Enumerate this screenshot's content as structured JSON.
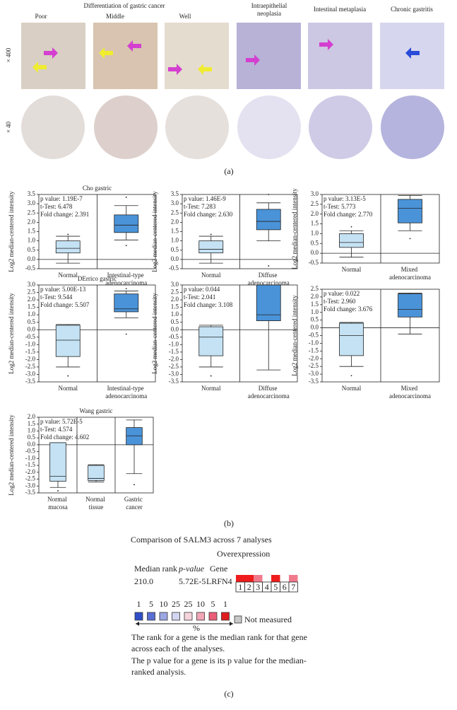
{
  "panel_a": {
    "group_title": "Differentiation of gastric cancer",
    "columns": [
      "Poor",
      "Middle",
      "Well",
      "Intraepithelial neoplasia",
      "Intestinal metaplasia",
      "Chronic gastritis"
    ],
    "rows": [
      "× 400",
      "× 40"
    ],
    "label": "(a)"
  },
  "panel_b_label": "(b)",
  "chart_data": [
    {
      "type": "box",
      "title": "Cho gastric",
      "ylabel": "Log2 median-centered intensity",
      "stats": [
        "p value: 1.19E-7",
        "t-Test: 6.478",
        "Fold change: 2.391"
      ],
      "categories": [
        "Normal",
        "Intestinal-type adenocarcinoma"
      ],
      "colors": [
        "#c4e2f4",
        "#4a93d8"
      ],
      "boxes": [
        {
          "whislo": -0.2,
          "q1": 0.35,
          "med": 0.6,
          "q3": 1.0,
          "whishi": 1.25,
          "fliers": [
            1.35
          ]
        },
        {
          "whislo": 1.05,
          "q1": 1.45,
          "med": 1.85,
          "q3": 2.4,
          "whishi": 2.9,
          "fliers": [
            3.35,
            0.75
          ]
        }
      ],
      "ylim": [
        -0.5,
        3.5
      ],
      "yticks": [
        -0.5,
        {
          "value": 0,
          "label": "0.0"
        },
        0.5,
        {
          "value": 1,
          "label": "1.0"
        },
        1.5,
        {
          "value": 2,
          "label": "2.0"
        },
        2.5,
        {
          "value": 3,
          "label": "3.0"
        },
        3.5
      ]
    },
    {
      "type": "box",
      "ylabel": "Log2 median-centered intensity",
      "stats": [
        "p value: 1.46E-9",
        "t-Test: 7.283",
        "Fold change: 2.630"
      ],
      "categories": [
        "Normal",
        "Diffuse adenocarcinoma"
      ],
      "colors": [
        "#c4e2f4",
        "#4a93d8"
      ],
      "boxes": [
        {
          "whislo": -0.2,
          "q1": 0.35,
          "med": 0.55,
          "q3": 1.0,
          "whishi": 1.25,
          "fliers": [
            1.35
          ]
        },
        {
          "whislo": 1.0,
          "q1": 1.6,
          "med": 2.05,
          "q3": 2.7,
          "whishi": 3.05,
          "fliers": [
            3.5,
            -0.35
          ]
        }
      ],
      "ylim": [
        -0.5,
        3.5
      ],
      "yticks": [
        -0.5,
        {
          "value": 0,
          "label": "0.0"
        },
        0.5,
        {
          "value": 1,
          "label": "1.0"
        },
        1.5,
        {
          "value": 2,
          "label": "2.0"
        },
        2.5,
        {
          "value": 3,
          "label": "3.0"
        },
        3.5
      ]
    },
    {
      "type": "box",
      "ylabel": "Log2 median-centered intensity",
      "stats": [
        "p value: 3.13E-5",
        "t-Test: 5.773",
        "Fold change: 2.770"
      ],
      "categories": [
        "Normal",
        "Mixed adenocarcinoma"
      ],
      "colors": [
        "#c4e2f4",
        "#4a93d8"
      ],
      "boxes": [
        {
          "whislo": -0.2,
          "q1": 0.3,
          "med": 0.55,
          "q3": 1.0,
          "whishi": 1.15,
          "fliers": [
            1.35
          ]
        },
        {
          "whislo": 1.15,
          "q1": 1.55,
          "med": 2.3,
          "q3": 2.75,
          "whishi": 2.95,
          "fliers": [
            0.75
          ]
        }
      ],
      "ylim": [
        -0.5,
        3.0
      ],
      "yticks": [
        -0.5,
        {
          "value": 0,
          "label": "0.0"
        },
        0.5,
        {
          "value": 1,
          "label": "1.0"
        },
        1.5,
        {
          "value": 2,
          "label": "2.0"
        },
        2.5,
        {
          "value": 3,
          "label": "3.0"
        }
      ]
    },
    {
      "type": "box",
      "title": "DErrico gastric",
      "ylabel": "Log2 median-centered intensity",
      "stats": [
        "p value: 5.00E-13",
        "t-Test: 9.544",
        "Fold change: 5.507"
      ],
      "categories": [
        "Normal",
        "Intestinal-type adenocarcinoma"
      ],
      "colors": [
        "#c4e2f4",
        "#4a93d8"
      ],
      "boxes": [
        {
          "whislo": -2.5,
          "q1": -1.8,
          "med": -0.7,
          "q3": 0.3,
          "whishi": 0.35,
          "fliers": [
            -3.1
          ]
        },
        {
          "whislo": 0.8,
          "q1": 1.2,
          "med": 1.4,
          "q3": 2.4,
          "whishi": 2.6,
          "fliers": [
            2.75,
            -0.3
          ]
        }
      ],
      "ylim": [
        -3.5,
        3.0
      ],
      "yticks": [
        -3.5,
        {
          "value": -3,
          "label": "-3.0"
        },
        -2.5,
        {
          "value": -2,
          "label": "-2.0"
        },
        -1.5,
        {
          "value": -1,
          "label": "-1.0"
        },
        -0.5,
        {
          "value": 0,
          "label": "0.0"
        },
        0.5,
        {
          "value": 1,
          "label": "1.0"
        },
        1.5,
        {
          "value": 2,
          "label": "2.0"
        },
        2.5,
        {
          "value": 3,
          "label": "3.0"
        }
      ]
    },
    {
      "type": "box",
      "ylabel": "Log2 median-centered intensity",
      "stats": [
        "p value: 0.044",
        "t-Test: 2.041",
        "Fold change: 3.108"
      ],
      "categories": [
        "Normal",
        "Diffuse adenocarcinoma"
      ],
      "colors": [
        "#c4e2f4",
        "#4a93d8"
      ],
      "boxes": [
        {
          "whislo": -2.5,
          "q1": -1.75,
          "med": -0.5,
          "q3": 0.2,
          "whishi": 0.3,
          "fliers": [
            -3.1
          ]
        },
        {
          "whislo": -2.7,
          "q1": 0.6,
          "med": 1.0,
          "q3": 3.0,
          "whishi": 3.0,
          "fliers": []
        }
      ],
      "ylim": [
        -3.5,
        3.0
      ],
      "yticks": [
        -3.5,
        {
          "value": -3,
          "label": "-3.0"
        },
        -2.5,
        {
          "value": -2,
          "label": "-2.0"
        },
        -1.5,
        {
          "value": -1,
          "label": "-1.0"
        },
        -0.5,
        {
          "value": 0,
          "label": "0.0"
        },
        0.5,
        {
          "value": 1,
          "label": "1.0"
        },
        1.5,
        {
          "value": 2,
          "label": "2.0"
        },
        2.5,
        {
          "value": 3,
          "label": "3.0"
        }
      ]
    },
    {
      "type": "box",
      "ylabel": "Log2 median-centered intensity",
      "stats": [
        "p value: 0.022",
        "t-Test: 2.960",
        "Fold change: 3.676"
      ],
      "categories": [
        "Normal",
        "Mixed adenocarcinoma"
      ],
      "colors": [
        "#c4e2f4",
        "#4a93d8"
      ],
      "boxes": [
        {
          "whislo": -2.5,
          "q1": -1.8,
          "med": -0.5,
          "q3": 0.3,
          "whishi": 0.35,
          "fliers": [
            -3.1
          ]
        },
        {
          "whislo": -0.4,
          "q1": 0.7,
          "med": 1.2,
          "q3": 2.2,
          "whishi": 2.25,
          "fliers": []
        }
      ],
      "ylim": [
        -3.5,
        2.5
      ],
      "yticks": [
        -3.5,
        {
          "value": -3,
          "label": "-3.0"
        },
        -2.5,
        {
          "value": -2,
          "label": "-2.0"
        },
        -1.5,
        {
          "value": -1,
          "label": "-1.0"
        },
        -0.5,
        {
          "value": 0,
          "label": "0.0"
        },
        0.5,
        {
          "value": 1,
          "label": "1.0"
        },
        1.5,
        {
          "value": 2,
          "label": "2.0"
        },
        2.5
      ]
    },
    {
      "type": "box",
      "title": "Wang gastric",
      "ylabel": "Log2 median-centered intensity",
      "stats": [
        "p value: 5.72E-5",
        "t-Test: 4.574",
        "Fold change: 4.602"
      ],
      "categories": [
        "Normal mucosa",
        "Normal tissue",
        "Gastric cancer"
      ],
      "colors": [
        "#c4e2f4",
        "#c4e2f4",
        "#4a93d8"
      ],
      "boxes": [
        {
          "whislo": -3.1,
          "q1": -2.65,
          "med": -2.3,
          "q3": 0.15,
          "whishi": 0.15,
          "fliers": [
            -3.35
          ]
        },
        {
          "whislo": -2.7,
          "q1": -2.6,
          "med": -2.45,
          "q3": -1.5,
          "whishi": -1.45,
          "fliers": []
        },
        {
          "whislo": -2.1,
          "q1": 0.0,
          "med": 0.65,
          "q3": 1.25,
          "whishi": 1.8,
          "fliers": [
            -2.9
          ]
        }
      ],
      "ylim": [
        -3.5,
        2.0
      ],
      "yticks": [
        -3.5,
        {
          "value": -3,
          "label": "-3.0"
        },
        -2.5,
        {
          "value": -2,
          "label": "-2.0"
        },
        -1.5,
        {
          "value": -1,
          "label": "-1.0"
        },
        -0.5,
        {
          "value": 0,
          "label": "0.0"
        },
        0.5,
        {
          "value": 1,
          "label": "1.0"
        },
        1.5,
        {
          "value": 2,
          "label": "2.0"
        }
      ]
    }
  ],
  "panel_c": {
    "title": "Comparison of SALM3 across 7 analyses",
    "subtitle": "Overexpression",
    "headers": [
      "Median rank",
      "p-value",
      "Gene"
    ],
    "row": [
      "210.0",
      "5.72E-5",
      "LRFN4"
    ],
    "cells": [
      {
        "label": 1,
        "color": "#ee1c1c"
      },
      {
        "label": 2,
        "color": "#ee1c1c"
      },
      {
        "label": 3,
        "color": "#f07a8c"
      },
      {
        "label": 4,
        "color": "#ffffff"
      },
      {
        "label": 5,
        "color": "#ee1c1c"
      },
      {
        "label": 6,
        "color": "#ffffff"
      },
      {
        "label": 7,
        "color": "#f07a8c"
      }
    ],
    "legend": [
      {
        "label": 1,
        "color": "#2f4fc8"
      },
      {
        "label": 5,
        "color": "#5a6ed4"
      },
      {
        "label": 10,
        "color": "#9ba6e2"
      },
      {
        "label": 25,
        "color": "#d2d6f0"
      },
      {
        "label": 25,
        "color": "#f6d4dc"
      },
      {
        "label": 10,
        "color": "#f2a6b6"
      },
      {
        "label": 5,
        "color": "#ea5d78"
      },
      {
        "label": 1,
        "color": "#e01e1e"
      }
    ],
    "legend_unit": "%",
    "not_measured": "Not measured",
    "notes": [
      "The rank for a gene is the median rank for that gene across each of the analyses.",
      "The p value for a gene is its p value for the median-ranked analysis."
    ],
    "label": "(c)"
  }
}
